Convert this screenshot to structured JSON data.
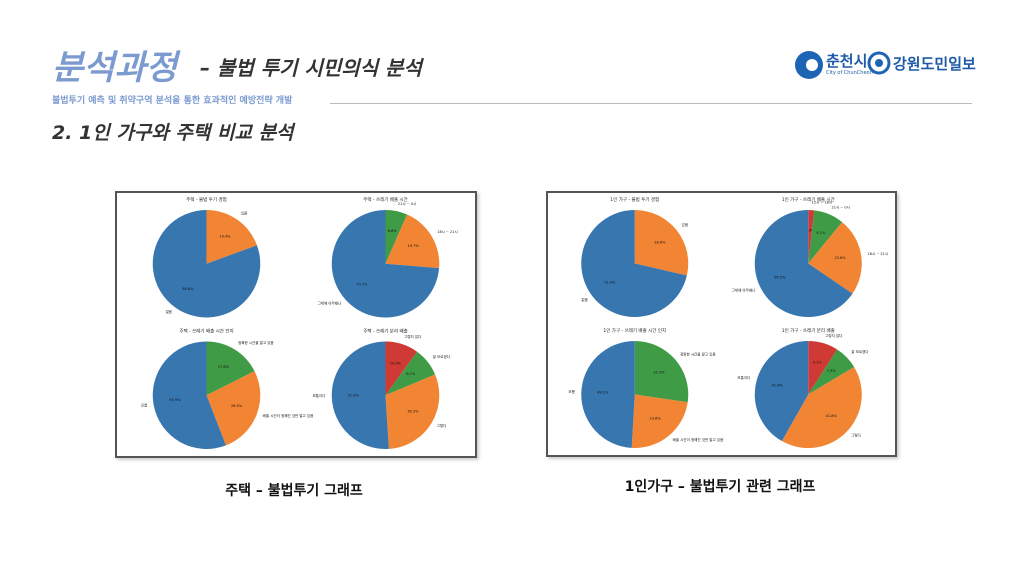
{
  "header": {
    "title": "분석과정",
    "subtitle": "– 불법 투기 시민의식 분석",
    "tagline": "불법투기 예측 및 취약구역 분석을 통한 효과적인 예방전략 개발",
    "logo_city": "춘천시",
    "logo_city_en": "City of ChunCheon",
    "logo_paper": "강원도민일보"
  },
  "section": "2. 1인 가구와 주택 비교 분석",
  "panels": [
    {
      "caption": "주택 – 불법투기 그래프",
      "charts": [
        {
          "type": "pie",
          "title": "주택 - 불법 투기 경험",
          "categories": [
            "있음",
            "없음"
          ],
          "values": [
            19.4,
            80.6
          ],
          "value_labels": [
            "19.4%",
            "80.6%"
          ],
          "colors": [
            "#f28534",
            "#3876b0"
          ]
        },
        {
          "type": "pie",
          "title": "주택 - 쓰레기 배출 시간",
          "categories": [
            "21시 ~ 0시",
            "18시 ~ 21시",
            "그밖에 아무때나"
          ],
          "values": [
            6.6,
            19.7,
            73.7
          ],
          "value_labels": [
            "6.6%",
            "19.7%",
            "73.7%"
          ],
          "colors": [
            "#3f9b46",
            "#f28534",
            "#3876b0"
          ]
        },
        {
          "type": "pie",
          "title": "주택 - 쓰레기 배출 시간 인지",
          "categories": [
            "정확한 시간을 알고 있음",
            "배출 시간이 정해진 것만 알고 있음",
            "모름"
          ],
          "values": [
            17.6,
            26.5,
            55.9
          ],
          "value_labels": [
            "17.6%",
            "26.5%",
            "55.9%"
          ],
          "colors": [
            "#3f9b46",
            "#f28534",
            "#3876b0"
          ]
        },
        {
          "type": "pie",
          "title": "주택 - 쓰레기 분리 배출",
          "categories": [
            "그렇지 않다",
            "잘 모르겠다",
            "그렇다",
            "보통이다"
          ],
          "values": [
            10.0,
            8.7,
            30.3,
            51.0
          ],
          "value_labels": [
            "10.0%",
            "8.7%",
            "30.3%",
            "51.0%"
          ],
          "colors": [
            "#d03a34",
            "#3f9b46",
            "#f28534",
            "#3876b0"
          ]
        }
      ]
    },
    {
      "caption": "1인가구 – 불법투기 관련 그래프",
      "charts": [
        {
          "type": "pie",
          "title": "1인 가구 - 불법 투기 경험",
          "categories": [
            "있음",
            "없음"
          ],
          "values": [
            28.6,
            71.4
          ],
          "value_labels": [
            "28.6%",
            "71.4%"
          ],
          "colors": [
            "#f28534",
            "#3876b0"
          ]
        },
        {
          "type": "pie",
          "title": "1인 가구 - 쓰레기 배출 시간",
          "categories": [
            "12시 ~ 18시",
            "21시 ~ 0시",
            "18시 ~ 21시",
            "그밖에 아무때나"
          ],
          "values": [
            1.8,
            9.1,
            23.6,
            65.5
          ],
          "value_labels": [
            "1.8%",
            "9.1%",
            "23.6%",
            "65.5%"
          ],
          "colors": [
            "#d03a34",
            "#3f9b46",
            "#f28534",
            "#3876b0"
          ]
        },
        {
          "type": "pie",
          "title": "1인 가구 - 쓰레기 배출 시간 인지",
          "categories": [
            "정확한 시간을 알고 있음",
            "배출 시간이 정해진 것만 알고 있음",
            "모름"
          ],
          "values": [
            27.3,
            23.6,
            49.1
          ],
          "value_labels": [
            "27.3%",
            "23.6%",
            "49.1%"
          ],
          "colors": [
            "#3f9b46",
            "#f28534",
            "#3876b0"
          ]
        },
        {
          "type": "pie",
          "title": "1인 가구 - 쓰레기 분리 배출",
          "categories": [
            "그렇지 않다",
            "잘 모르겠다",
            "그렇다",
            "보통이다"
          ],
          "values": [
            9.1,
            7.3,
            41.8,
            41.8
          ],
          "value_labels": [
            "9.1%",
            "7.3%",
            "41.8%",
            "41.8%"
          ],
          "colors": [
            "#d03a34",
            "#3f9b46",
            "#f28534",
            "#3876b0"
          ]
        }
      ]
    }
  ]
}
